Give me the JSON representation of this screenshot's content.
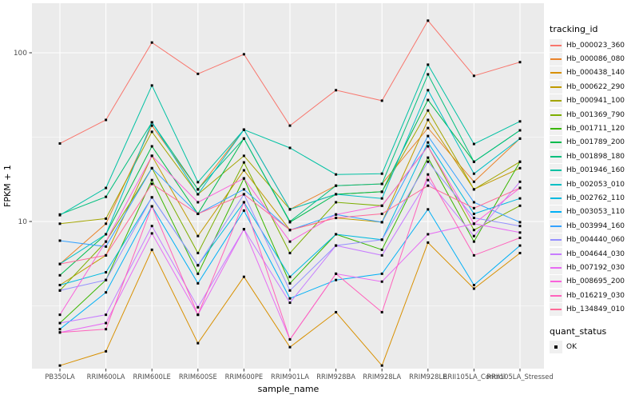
{
  "figure": {
    "x_axis_title": "sample_name",
    "y_axis_title": "FPKM + 1",
    "y_tick_labels": [
      "100",
      "10"
    ],
    "colors": {
      "panel_bg": "#EBEBEB",
      "grid": "#FFFFFF",
      "axis_text": "#4D4D4D",
      "tick": "#333333",
      "point": "#000000"
    }
  },
  "legend": {
    "tracking_title": "tracking_id",
    "quant_title": "quant_status",
    "quant_items": [
      {
        "label": "OK",
        "marker": "black-square-point-icon"
      }
    ]
  },
  "chart_data": {
    "type": "line",
    "title": "",
    "xlabel": "sample_name",
    "ylabel": "FPKM + 1",
    "y_scale": "log10",
    "ylim": [
      1.3,
      195
    ],
    "y_ticks": [
      10,
      100
    ],
    "grid": true,
    "legend_position": "right",
    "point_marker": "black-square",
    "categories": [
      "PB350LA",
      "RRIM600LA",
      "RRIM600LE",
      "RRIM600SE",
      "RRIM600PE",
      "RRIM901LA",
      "RRIM928BA",
      "RRIM928LA",
      "RRIM928LE",
      "RRII105LA_Control",
      "RRII105LA_Stressed"
    ],
    "series": [
      {
        "name": "Hb_000023_360",
        "color": "#F8766D",
        "values": [
          29,
          40,
          115,
          75,
          98,
          37,
          60,
          52,
          155,
          73,
          88
        ]
      },
      {
        "name": "Hb_000086_080",
        "color": "#E9842C",
        "values": [
          5.6,
          9.7,
          37,
          15.5,
          35,
          11.8,
          16.3,
          16.7,
          35.8,
          17.2,
          31
        ]
      },
      {
        "name": "Hb_000438_140",
        "color": "#D89000",
        "values": [
          1.4,
          1.7,
          6.8,
          1.9,
          4.7,
          1.8,
          2.9,
          1.4,
          7.5,
          4.0,
          6.5
        ]
      },
      {
        "name": "Hb_000622_290",
        "color": "#C09B00",
        "values": [
          4.2,
          6.3,
          24.5,
          8.2,
          20.1,
          8.9,
          10.5,
          9.9,
          40,
          15.5,
          20.7
        ]
      },
      {
        "name": "Hb_000941_100",
        "color": "#A3A500",
        "values": [
          9.7,
          10.4,
          34,
          14.5,
          24.5,
          11.8,
          14.5,
          15.0,
          45.5,
          15.5,
          22.6
        ]
      },
      {
        "name": "Hb_001369_790",
        "color": "#7CAE00",
        "values": [
          3.9,
          7.6,
          20.7,
          6.5,
          22.4,
          6.5,
          13.0,
          12.4,
          27.9,
          8.9,
          12.4
        ]
      },
      {
        "name": "Hb_001711_120",
        "color": "#39B600",
        "values": [
          2.5,
          4.5,
          17.6,
          4.9,
          18.0,
          4.3,
          8.4,
          6.8,
          23.9,
          7.6,
          22.6
        ]
      },
      {
        "name": "Hb_001789_200",
        "color": "#00BB4E",
        "values": [
          4.8,
          8.4,
          27.9,
          11.1,
          31.0,
          9.9,
          14.5,
          15.0,
          52.5,
          22.6,
          34.7
        ]
      },
      {
        "name": "Hb_001898_180",
        "color": "#00BF7D",
        "values": [
          11.0,
          14.0,
          38.7,
          15.5,
          31.0,
          10.0,
          16.3,
          16.7,
          74.5,
          22.6,
          34.7
        ]
      },
      {
        "name": "Hb_001946_160",
        "color": "#00C1A3",
        "values": [
          10.9,
          15.8,
          64.0,
          17.1,
          35.0,
          27.3,
          19.0,
          19.2,
          85.0,
          28.8,
          39.2
        ]
      },
      {
        "name": "Hb_002053_010",
        "color": "#00BFC4",
        "values": [
          5.6,
          8.4,
          38.7,
          14.5,
          35.0,
          11.8,
          14.5,
          13.7,
          60.0,
          19.2,
          31.0
        ]
      },
      {
        "name": "Hb_002762_110",
        "color": "#00BAE0",
        "values": [
          4.2,
          5.0,
          13.9,
          5.5,
          13.0,
          4.7,
          8.4,
          7.8,
          29.4,
          11.1,
          13.7
        ]
      },
      {
        "name": "Hb_003053_110",
        "color": "#00B0F6",
        "values": [
          2.3,
          3.8,
          12.3,
          4.3,
          11.6,
          3.5,
          4.5,
          4.9,
          11.8,
          4.2,
          7.2
        ]
      },
      {
        "name": "Hb_003994_160",
        "color": "#35A2FF",
        "values": [
          7.7,
          7.1,
          20.7,
          11.1,
          15.5,
          8.9,
          11.0,
          9.9,
          32.1,
          13.0,
          9.9
        ]
      },
      {
        "name": "Hb_004440_060",
        "color": "#9590FF",
        "values": [
          3.9,
          4.5,
          13.9,
          5.5,
          14.5,
          3.9,
          7.2,
          7.8,
          22.6,
          10.5,
          9.4
        ]
      },
      {
        "name": "Hb_004644_030",
        "color": "#C77CFF",
        "values": [
          2.5,
          2.8,
          9.4,
          3.1,
          9.0,
          3.3,
          7.2,
          6.3,
          17.6,
          8.2,
          17.2
        ]
      },
      {
        "name": "Hb_007192_030",
        "color": "#E76BF3",
        "values": [
          2.2,
          2.5,
          8.5,
          2.8,
          9.0,
          2.0,
          4.9,
          4.4,
          8.4,
          9.7,
          8.6
        ]
      },
      {
        "name": "Hb_008695_200",
        "color": "#FA62DB",
        "values": [
          2.8,
          7.6,
          24.5,
          13.0,
          18.0,
          7.6,
          11.0,
          12.4,
          27.9,
          9.7,
          15.8
        ]
      },
      {
        "name": "Hb_016219_030",
        "color": "#FF62BC",
        "values": [
          2.2,
          2.3,
          12.3,
          2.8,
          13.0,
          2.0,
          4.9,
          2.9,
          19.0,
          6.3,
          8.0
        ]
      },
      {
        "name": "Hb_134849_010",
        "color": "#FF6A98",
        "values": [
          5.6,
          6.3,
          16.7,
          11.1,
          14.5,
          8.9,
          10.5,
          11.1,
          16.3,
          12.0,
          15.8
        ]
      }
    ]
  }
}
